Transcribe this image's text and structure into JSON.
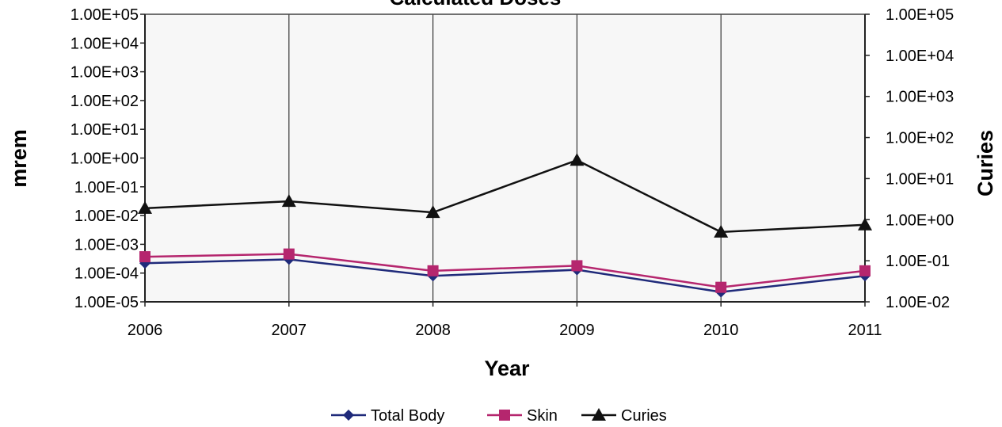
{
  "chart_data": {
    "type": "line",
    "title": "Calculated Doses",
    "xlabel": "Year",
    "ylabel": "mrem",
    "y2label": "Curies",
    "x": [
      2006,
      2007,
      2008,
      2009,
      2010,
      2011
    ],
    "x_tick_labels": [
      "2006",
      "2007",
      "2008",
      "2009",
      "2010",
      "2011"
    ],
    "y_scale": "log",
    "ylim": [
      1e-05,
      100000.0
    ],
    "y_tick_labels": [
      "1.00E+05",
      "1.00E+04",
      "1.00E+03",
      "1.00E+02",
      "1.00E+01",
      "1.00E+00",
      "1.00E-01",
      "1.00E-02",
      "1.00E-03",
      "1.00E-04",
      "1.00E-05"
    ],
    "y2_scale": "log",
    "y2lim": [
      0.01,
      100000
    ],
    "y2_tick_labels": [
      "1.00E+05",
      "1.00E+04",
      "1.00E+03",
      "1.00E+02",
      "1.00E+01",
      "1.00E+00",
      "1.00E-01",
      "1.00E-02"
    ],
    "grid": "vertical",
    "legend_position": "bottom",
    "series": [
      {
        "name": "Total Body",
        "axis": "left",
        "marker": "diamond",
        "color": "#1F2A7A",
        "values": [
          0.00022,
          0.0003,
          8e-05,
          0.00013,
          2.2e-05,
          8e-05
        ]
      },
      {
        "name": "Skin",
        "axis": "left",
        "marker": "square",
        "color": "#B5266E",
        "values": [
          0.00037,
          0.00046,
          0.00012,
          0.00018,
          3.2e-05,
          0.00012
        ]
      },
      {
        "name": "Curies",
        "axis": "right",
        "marker": "triangle",
        "color": "#111111",
        "values": [
          1.9,
          2.8,
          1.5,
          28,
          0.5,
          0.75
        ]
      }
    ]
  }
}
